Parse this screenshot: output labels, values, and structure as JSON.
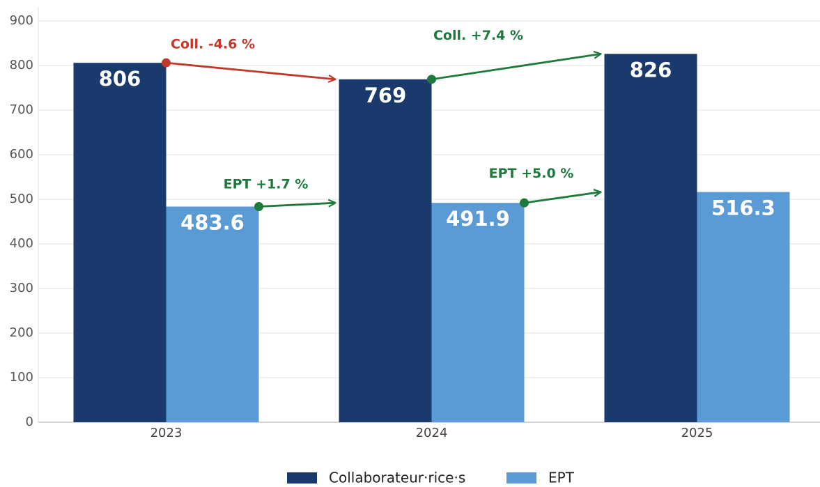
{
  "chart_data": {
    "type": "bar",
    "categories": [
      "2023",
      "2024",
      "2025"
    ],
    "series": [
      {
        "name": "Collaborateur·rice·s",
        "color": "#1a3a6e",
        "values": [
          806,
          769,
          826
        ],
        "change_labels": [
          "Coll. -4.6 %",
          "Coll. +7.4 %"
        ],
        "change_colors": [
          "#c0392b",
          "#1e7a3c"
        ]
      },
      {
        "name": "EPT",
        "color": "#5b9bd5",
        "values": [
          483.6,
          491.9,
          516.3
        ],
        "change_labels": [
          "EPT +1.7 %",
          "EPT +5.0 %"
        ],
        "change_colors": [
          "#1e7a3c",
          "#1e7a3c"
        ]
      }
    ],
    "ylim": [
      0,
      900
    ],
    "yticks": [
      0,
      100,
      200,
      300,
      400,
      500,
      600,
      700,
      800,
      900
    ],
    "grid": true,
    "legend": "bottom"
  }
}
